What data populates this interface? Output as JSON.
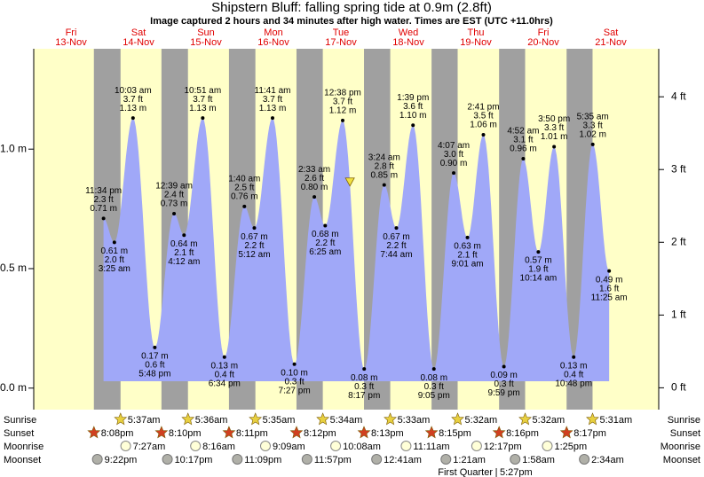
{
  "title": "Shipstern Bluff: falling  spring tide at 0.9m (2.8ft)",
  "subtitle": "Image captured 2 hours and 34 minutes after high water. Times are EST (UTC +11.0hrs)",
  "row_labels": {
    "sunrise": "Sunrise",
    "sunset": "Sunset",
    "moonrise": "Moonrise",
    "moonset": "Moonset"
  },
  "moon_phase": {
    "name": "First Quarter",
    "time": "5:27pm"
  },
  "chart_data": {
    "type": "tide",
    "ylim": [
      -0.09,
      1.42
    ],
    "yticks": [
      {
        "value": 0,
        "label": "0.0 m"
      },
      {
        "value": 0.5,
        "label": "0.5 m"
      },
      {
        "value": 1,
        "label": "1.0 m"
      }
    ],
    "y2lim": [
      -0.3,
      4.66
    ],
    "y2ticks": [
      {
        "value": 0,
        "label": "0 ft"
      },
      {
        "value": 1,
        "label": "1 ft"
      },
      {
        "value": 2,
        "label": "2 ft"
      },
      {
        "value": 3,
        "label": "3 ft"
      },
      {
        "value": 4,
        "label": "4 ft"
      }
    ],
    "days": [
      {
        "weekday": "Fri",
        "date": "13-Nov",
        "sunrise": null,
        "sunset": "8:08pm",
        "moonrise": null,
        "moonset": "9:22pm",
        "tides": [
          {
            "time": "11:34 pm",
            "ft": {
              "value": 2.3,
              "label": "2.3 ft"
            },
            "m": {
              "value": 0.71,
              "label": "0.71 m"
            }
          }
        ]
      },
      {
        "weekday": "Sat",
        "date": "14-Nov",
        "sunrise": "5:37am",
        "sunset": "8:10pm",
        "moonrise": "7:27am",
        "moonset": "10:17pm",
        "tides": [
          {
            "time": "3:25 am",
            "ft": {
              "value": 2.0,
              "label": "2.0 ft"
            },
            "m": {
              "value": 0.61,
              "label": "0.61 m"
            }
          },
          {
            "time": "10:03 am",
            "ft": {
              "value": 3.7,
              "label": "3.7 ft"
            },
            "m": {
              "value": 1.13,
              "label": "1.13 m"
            }
          },
          {
            "time": "5:48 pm",
            "ft": {
              "value": 0.6,
              "label": "0.6 ft"
            },
            "m": {
              "value": 0.17,
              "label": "0.17 m"
            }
          }
        ]
      },
      {
        "weekday": "Sun",
        "date": "15-Nov",
        "sunrise": "5:36am",
        "sunset": "8:11pm",
        "moonrise": "8:16am",
        "moonset": "11:09pm",
        "tides": [
          {
            "time": "12:39 am",
            "ft": {
              "value": 2.4,
              "label": "2.4 ft"
            },
            "m": {
              "value": 0.73,
              "label": "0.73 m"
            }
          },
          {
            "time": "4:12 am",
            "ft": {
              "value": 2.1,
              "label": "2.1 ft"
            },
            "m": {
              "value": 0.64,
              "label": "0.64 m"
            }
          },
          {
            "time": "10:51 am",
            "ft": {
              "value": 3.7,
              "label": "3.7 ft"
            },
            "m": {
              "value": 1.13,
              "label": "1.13 m"
            }
          },
          {
            "time": "6:34 pm",
            "ft": {
              "value": 0.4,
              "label": "0.4 ft"
            },
            "m": {
              "value": 0.13,
              "label": "0.13 m"
            }
          }
        ]
      },
      {
        "weekday": "Mon",
        "date": "16-Nov",
        "sunrise": "5:35am",
        "sunset": "8:12pm",
        "moonrise": "9:09am",
        "moonset": "11:57pm",
        "tides": [
          {
            "time": "1:40 am",
            "ft": {
              "value": 2.5,
              "label": "2.5 ft"
            },
            "m": {
              "value": 0.76,
              "label": "0.76 m"
            }
          },
          {
            "time": "5:12 am",
            "ft": {
              "value": 2.2,
              "label": "2.2 ft"
            },
            "m": {
              "value": 0.67,
              "label": "0.67 m"
            }
          },
          {
            "time": "11:41 am",
            "ft": {
              "value": 3.7,
              "label": "3.7 ft"
            },
            "m": {
              "value": 1.13,
              "label": "1.13 m"
            }
          },
          {
            "time": "7:27 pm",
            "ft": {
              "value": 0.3,
              "label": "0.3 ft"
            },
            "m": {
              "value": 0.1,
              "label": "0.10 m"
            }
          }
        ]
      },
      {
        "weekday": "Tue",
        "date": "17-Nov",
        "sunrise": "5:34am",
        "sunset": "8:13pm",
        "moonrise": "10:08am",
        "moonset": null,
        "tides": [
          {
            "time": "2:33 am",
            "ft": {
              "value": 2.6,
              "label": "2.6 ft"
            },
            "m": {
              "value": 0.8,
              "label": "0.80 m"
            }
          },
          {
            "time": "6:25 am",
            "ft": {
              "value": 2.2,
              "label": "2.2 ft"
            },
            "m": {
              "value": 0.68,
              "label": "0.68 m"
            }
          },
          {
            "time": "12:38 pm",
            "ft": {
              "value": 3.7,
              "label": "3.7 ft"
            },
            "m": {
              "value": 1.12,
              "label": "1.12 m"
            }
          },
          {
            "time": "8:17 pm",
            "ft": {
              "value": 0.3,
              "label": "0.3 ft"
            },
            "m": {
              "value": 0.08,
              "label": "0.08 m"
            }
          }
        ]
      },
      {
        "weekday": "Wed",
        "date": "18-Nov",
        "sunrise": "5:33am",
        "sunset": "8:15pm",
        "moonrise": "11:11am",
        "moonset": "12:41am",
        "tides": [
          {
            "time": "3:24 am",
            "ft": {
              "value": 2.8,
              "label": "2.8 ft"
            },
            "m": {
              "value": 0.85,
              "label": "0.85 m"
            }
          },
          {
            "time": "7:44 am",
            "ft": {
              "value": 2.2,
              "label": "2.2 ft"
            },
            "m": {
              "value": 0.67,
              "label": "0.67 m"
            }
          },
          {
            "time": "1:39 pm",
            "ft": {
              "value": 3.6,
              "label": "3.6 ft"
            },
            "m": {
              "value": 1.1,
              "label": "1.10 m"
            }
          },
          {
            "time": "9:05 pm",
            "ft": {
              "value": 0.3,
              "label": "0.3 ft"
            },
            "m": {
              "value": 0.08,
              "label": "0.08 m"
            }
          }
        ]
      },
      {
        "weekday": "Thu",
        "date": "19-Nov",
        "sunrise": "5:32am",
        "sunset": "8:16pm",
        "moonrise": "12:17pm",
        "moonset": "1:21am",
        "tides": [
          {
            "time": "4:07 am",
            "ft": {
              "value": 3.0,
              "label": "3.0 ft"
            },
            "m": {
              "value": 0.9,
              "label": "0.90 m"
            }
          },
          {
            "time": "9:01 am",
            "ft": {
              "value": 2.1,
              "label": "2.1 ft"
            },
            "m": {
              "value": 0.63,
              "label": "0.63 m"
            }
          },
          {
            "time": "2:41 pm",
            "ft": {
              "value": 3.5,
              "label": "3.5 ft"
            },
            "m": {
              "value": 1.06,
              "label": "1.06 m"
            }
          },
          {
            "time": "9:59 pm",
            "ft": {
              "value": 0.3,
              "label": "0.3 ft"
            },
            "m": {
              "value": 0.09,
              "label": "0.09 m"
            }
          }
        ]
      },
      {
        "weekday": "Fri",
        "date": "20-Nov",
        "sunrise": "5:32am",
        "sunset": "8:17pm",
        "moonrise": "1:25pm",
        "moonset": "1:58am",
        "tides": [
          {
            "time": "4:52 am",
            "ft": {
              "value": 3.1,
              "label": "3.1 ft"
            },
            "m": {
              "value": 0.96,
              "label": "0.96 m"
            }
          },
          {
            "time": "10:14 am",
            "ft": {
              "value": 1.9,
              "label": "1.9 ft"
            },
            "m": {
              "value": 0.57,
              "label": "0.57 m"
            }
          },
          {
            "time": "3:50 pm",
            "ft": {
              "value": 3.3,
              "label": "3.3 ft"
            },
            "m": {
              "value": 1.01,
              "label": "1.01 m"
            }
          },
          {
            "time": "10:48 pm",
            "ft": {
              "value": 0.4,
              "label": "0.4 ft"
            },
            "m": {
              "value": 0.13,
              "label": "0.13 m"
            }
          }
        ]
      },
      {
        "weekday": "Sat",
        "date": "21-Nov",
        "sunrise": "5:31am",
        "sunset": null,
        "moonrise": null,
        "moonset": "2:34am",
        "tides": [
          {
            "time": "5:35 am",
            "ft": {
              "value": 3.3,
              "label": "3.3 ft"
            },
            "m": {
              "value": 1.02,
              "label": "1.02 m"
            }
          },
          {
            "time": "11:25 am",
            "ft": {
              "value": 1.6,
              "label": "1.6 ft"
            },
            "m": {
              "value": 0.49,
              "label": "0.49 m"
            }
          }
        ]
      }
    ]
  }
}
